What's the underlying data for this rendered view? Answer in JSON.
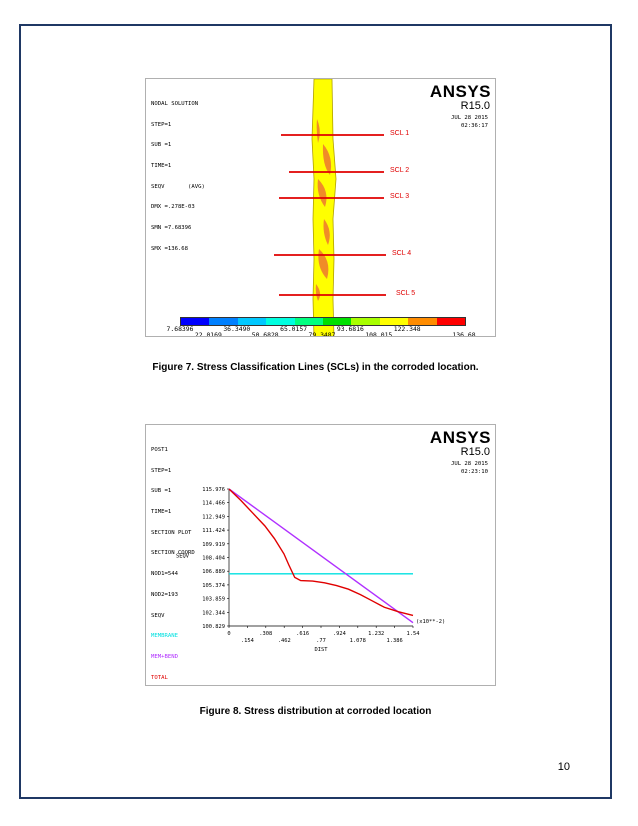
{
  "figure7": {
    "header_lines": [
      "NODAL SOLUTION",
      "STEP=1",
      "SUB =1",
      "TIME=1",
      "SEQV       (AVG)",
      "DMX =.278E-03",
      "SMN =7.68396",
      "SMX =136.68"
    ],
    "brand": "ANSYS",
    "version": "R15.0",
    "date": "JUL 28 2015",
    "time": "02:36:17",
    "scl_labels": [
      "SCL 1",
      "SCL 2",
      "SCL 3",
      "SCL 4",
      "SCL 5"
    ],
    "colorbar_colors": [
      "#0000ff",
      "#0080ff",
      "#00c8ff",
      "#00ffe0",
      "#00ff80",
      "#00e000",
      "#a8ff00",
      "#ffff00",
      "#ff8c00",
      "#ff0000"
    ],
    "colorbar_top_labels": [
      "7.68396",
      "36.3490",
      "65.0157",
      "93.6816",
      "122.348"
    ],
    "colorbar_bottom_labels": [
      "22.0169",
      "50.6828",
      "79.3487",
      "108.015",
      "136.68"
    ],
    "caption": "Figure 7. Stress Classification Lines (SCLs) in the corroded location."
  },
  "figure8": {
    "header_lines": [
      "POST1",
      "STEP=1",
      "SUB =1",
      "TIME=1",
      "SECTION PLOT",
      "SECTION COORD",
      "NOD1=544",
      "NOD2=193",
      "SEQV"
    ],
    "legend": [
      {
        "name": "MEMBRANE",
        "color": "#00e0e0"
      },
      {
        "name": "MEM+BEND",
        "color": "#b030ff"
      },
      {
        "name": "TOTAL",
        "color": "#e00000"
      }
    ],
    "brand": "ANSYS",
    "version": "R15.0",
    "date": "JUL 28 2015",
    "time": "02:23:10",
    "caption": "Figure 8. Stress distribution at corroded location",
    "chart_data": {
      "type": "line",
      "xlabel": "DIST",
      "ylabel": "SEQV",
      "x_multiplier_label": "(x10**-2)",
      "xlim": [
        0,
        1.54
      ],
      "ylim": [
        100.829,
        115.976
      ],
      "x_ticks_top": [
        "0",
        ".308",
        ".616",
        ".924",
        "1.232",
        "1.54"
      ],
      "x_ticks_bottom": [
        ".154",
        ".462",
        ".77",
        "1.078",
        "1.386"
      ],
      "y_ticks": [
        "115.976",
        "114.466",
        "112.949",
        "111.424",
        "109.919",
        "108.404",
        "106.889",
        "105.374",
        "103.859",
        "102.344",
        "100.829"
      ],
      "series": [
        {
          "name": "MEMBRANE",
          "x": [
            0,
            1.54
          ],
          "y": [
            106.6,
            106.6
          ]
        },
        {
          "name": "MEM+BEND",
          "x": [
            0,
            1.54
          ],
          "y": [
            115.976,
            101.2
          ]
        },
        {
          "name": "TOTAL",
          "x": [
            0,
            0.1,
            0.2,
            0.3,
            0.38,
            0.46,
            0.5,
            0.55,
            0.6,
            0.7,
            0.8,
            0.9,
            1.0,
            1.1,
            1.2,
            1.3,
            1.42,
            1.54
          ],
          "y": [
            115.976,
            114.7,
            113.3,
            111.9,
            110.5,
            108.8,
            107.6,
            106.2,
            105.85,
            105.8,
            105.6,
            105.3,
            104.9,
            104.3,
            103.6,
            102.9,
            102.4,
            102.0
          ]
        }
      ]
    }
  },
  "page_number": "10"
}
